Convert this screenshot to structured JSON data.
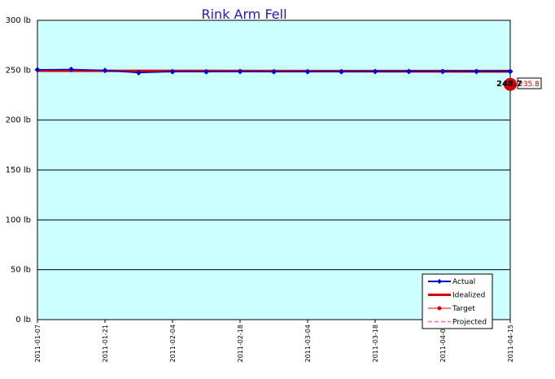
{
  "chart_data": {
    "type": "line",
    "title": "Rink Arm Fell",
    "xlabel": "",
    "ylabel": "",
    "ylim": [
      0,
      300
    ],
    "y_ticks": [
      "0 lb",
      "50 lb",
      "100 lb",
      "150 lb",
      "200 lb",
      "250 lb",
      "300 lb"
    ],
    "y_tick_values": [
      0,
      50,
      100,
      150,
      200,
      250,
      300
    ],
    "x_range": [
      "2011-01-07",
      "2011-04-15"
    ],
    "x_ticks": [
      "2011-01-07",
      "2011-01-21",
      "2011-02-04",
      "2011-02-18",
      "2011-03-04",
      "2011-03-18",
      "2011-04-01",
      "2011-04-15"
    ],
    "grid": true,
    "legend_position": "bottom-right",
    "series": [
      {
        "name": "Actual",
        "color": "#0000cc",
        "x": [
          "2011-01-07",
          "2011-01-14",
          "2011-01-21",
          "2011-01-28",
          "2011-02-04",
          "2011-02-11",
          "2011-02-18",
          "2011-02-25",
          "2011-03-04",
          "2011-03-11",
          "2011-03-18",
          "2011-03-25",
          "2011-04-01",
          "2011-04-08",
          "2011-04-15"
        ],
        "values": [
          250.5,
          250.8,
          249.8,
          247.5,
          248.5,
          248.5,
          248.7,
          248.5,
          248.5,
          248.5,
          248.7,
          248.7,
          248.7,
          248.7,
          248.7
        ]
      },
      {
        "name": "Idealized",
        "color": "#dd0000",
        "x": [
          "2011-01-07",
          "2011-04-15"
        ],
        "values": [
          249.5,
          248.7
        ]
      },
      {
        "name": "Target",
        "color": "#dd0000",
        "x": [
          "2011-04-15"
        ],
        "values": [
          235.8
        ]
      },
      {
        "name": "Projected",
        "color": "#ff66aa",
        "x": [],
        "values": []
      }
    ],
    "end_label": "248.7",
    "target_label": "235.8"
  }
}
